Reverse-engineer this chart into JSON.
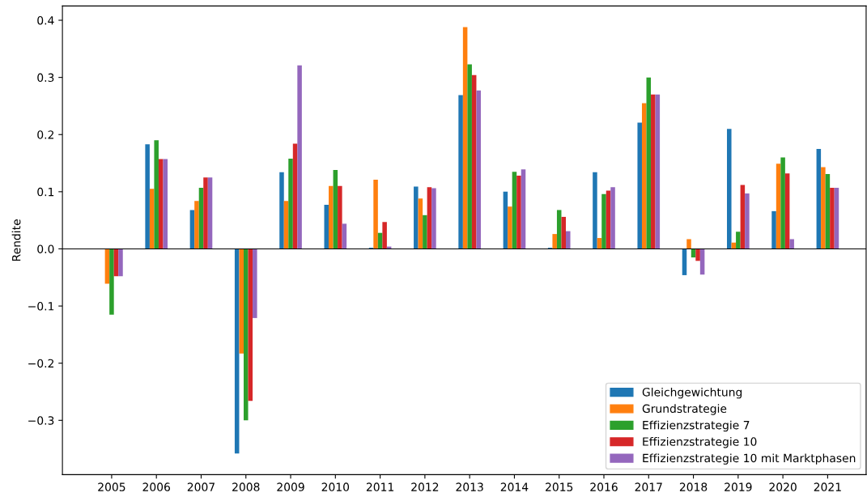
{
  "chart_data": {
    "type": "bar",
    "ylabel": "Rendite",
    "categories": [
      "2005",
      "2006",
      "2007",
      "2008",
      "2009",
      "2010",
      "2011",
      "2012",
      "2013",
      "2014",
      "2015",
      "2016",
      "2017",
      "2018",
      "2019",
      "2020",
      "2021"
    ],
    "series": [
      {
        "name": "Gleichgewichtung",
        "color": "#1f77b4",
        "values": [
          null,
          0.183,
          0.068,
          -0.358,
          0.134,
          0.077,
          0.002,
          0.109,
          0.269,
          0.1,
          0.002,
          0.134,
          0.221,
          -0.046,
          0.21,
          0.066,
          0.175
        ]
      },
      {
        "name": "Grundstrategie",
        "color": "#ff7f0e",
        "values": [
          -0.061,
          0.105,
          0.084,
          -0.183,
          0.084,
          0.11,
          0.121,
          0.088,
          0.388,
          0.074,
          0.026,
          0.019,
          0.255,
          0.017,
          0.011,
          0.149,
          0.143
        ]
      },
      {
        "name": "Effizienzstrategie 7",
        "color": "#2ca02c",
        "values": [
          -0.115,
          0.19,
          0.107,
          -0.3,
          0.158,
          0.138,
          0.028,
          0.059,
          0.323,
          0.135,
          0.068,
          0.096,
          0.3,
          -0.015,
          0.03,
          0.16,
          0.131
        ]
      },
      {
        "name": "Effizienzstrategie 10",
        "color": "#d62728",
        "values": [
          -0.048,
          0.157,
          0.125,
          -0.266,
          0.184,
          0.11,
          0.047,
          0.108,
          0.304,
          0.128,
          0.056,
          0.102,
          0.27,
          -0.021,
          0.112,
          0.132,
          0.107
        ]
      },
      {
        "name": "Effizienzstrategie 10 mit Marktphasen",
        "color": "#9467bd",
        "values": [
          -0.048,
          0.157,
          0.125,
          -0.121,
          0.321,
          0.044,
          0.004,
          0.106,
          0.277,
          0.139,
          0.031,
          0.108,
          0.27,
          -0.045,
          0.097,
          0.017,
          0.107
        ]
      }
    ],
    "ylim": [
      -0.395,
      0.425
    ],
    "yticks": [
      {
        "value": -0.3,
        "label": "−0.3"
      },
      {
        "value": -0.2,
        "label": "−0.2"
      },
      {
        "value": -0.1,
        "label": "−0.1"
      },
      {
        "value": 0,
        "label": "0.0"
      },
      0.1,
      0.2,
      0.3,
      0.4
    ],
    "ref_lines": [
      {
        "axis": "y",
        "value": 0,
        "color": "#000000"
      }
    ],
    "legend": "bottom right",
    "grid": false
  }
}
